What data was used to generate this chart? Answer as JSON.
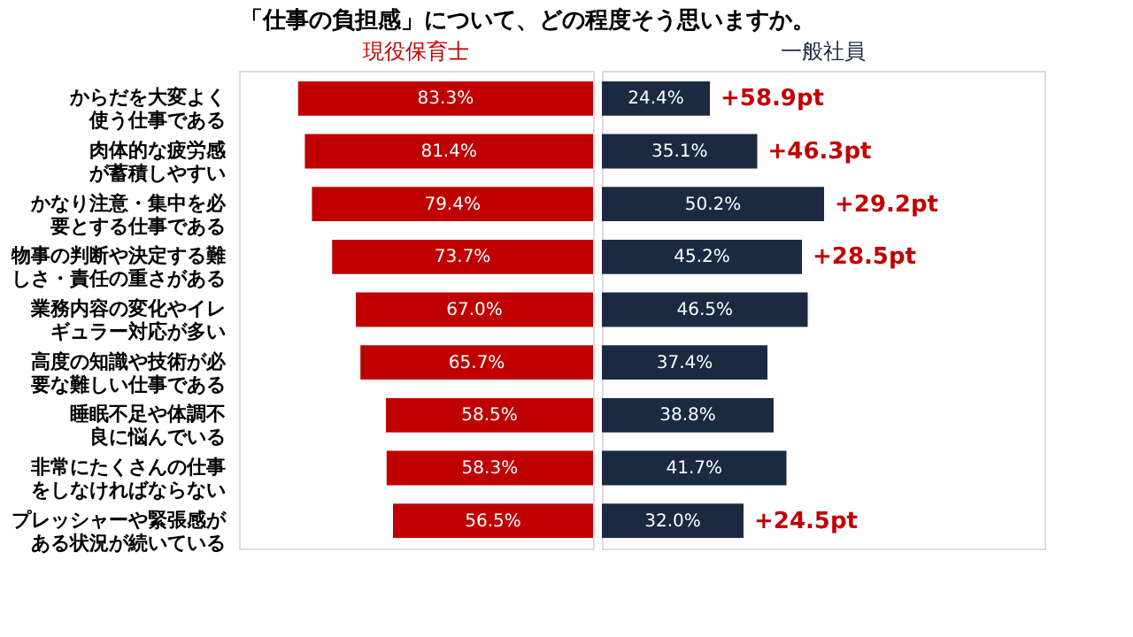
{
  "chart_data": [
    {
      "type": "bar",
      "orientation": "horizontal",
      "title": "「仕事の負担感」について、どの程度そう思いますか。",
      "categories": [
        "からだを大変よく使う仕事である",
        "肉体的な疲労感が蓄積しやすい",
        "かなり注意・集中を必要とする仕事である",
        "物事の判断や決定する難しさ・責任の重さがある",
        "業務内容の変化やイレギュラー対応が多い",
        "高度の知識や技術が必要な難しい仕事である",
        "睡眠不足や体調不良に悩んでいる",
        "非常にたくさんの仕事をしなければならない",
        "プレッシャーや緊張感がある状況が続いている"
      ],
      "xlim": [
        100,
        0
      ],
      "tick_labels": "y",
      "series": [
        {
          "name": "現役保育士",
          "color": "#c00000",
          "values": [
            83.3,
            81.4,
            79.4,
            73.7,
            67.0,
            65.7,
            58.5,
            58.3,
            56.5
          ],
          "value_labels": [
            "83.3%",
            "81.4%",
            "79.4%",
            "73.7%",
            "67.0%",
            "65.7%",
            "58.5%",
            "58.3%",
            "56.5%"
          ]
        }
      ]
    },
    {
      "type": "bar",
      "orientation": "horizontal",
      "categories": [
        "からだを大変よく使う仕事である",
        "肉体的な疲労感が蓄積しやすい",
        "かなり注意・集中を必要とする仕事である",
        "物事の判断や決定する難しさ・責任の重さがある",
        "業務内容の変化やイレギュラー対応が多い",
        "高度の知識や技術が必要な難しい仕事である",
        "睡眠不足や体調不良に悩んでいる",
        "非常にたくさんの仕事をしなければならない",
        "プレッシャーや緊張感がある状況が続いている"
      ],
      "xlim": [
        0,
        100
      ],
      "tick_labels": false,
      "series": [
        {
          "name": "一般社員",
          "color": "#1b2a41",
          "values": [
            24.4,
            35.1,
            50.2,
            45.2,
            46.5,
            37.4,
            38.8,
            41.7,
            32.0
          ],
          "value_labels": [
            "24.4%",
            "35.1%",
            "50.2%",
            "45.2%",
            "46.5%",
            "37.4%",
            "38.8%",
            "41.7%",
            "32.0%"
          ]
        }
      ],
      "annotations": [
        {
          "text": "+58.9pt",
          "x": 24.4,
          "y": "からだを大変よく使う仕事である"
        },
        {
          "text": "+46.3pt",
          "x": 35.1,
          "y": "肉体的な疲労感が蓄積しやすい"
        },
        {
          "text": "+29.2pt",
          "x": 50.2,
          "y": "かなり注意・集中を必要とする仕事である"
        },
        {
          "text": "+28.5pt",
          "x": 45.2,
          "y": "物事の判断や決定する難しさ・責任の重さがある"
        },
        {
          "text": "+24.5pt",
          "x": 32.0,
          "y": "プレッシャーや緊張感がある状況が続いている"
        }
      ]
    }
  ]
}
